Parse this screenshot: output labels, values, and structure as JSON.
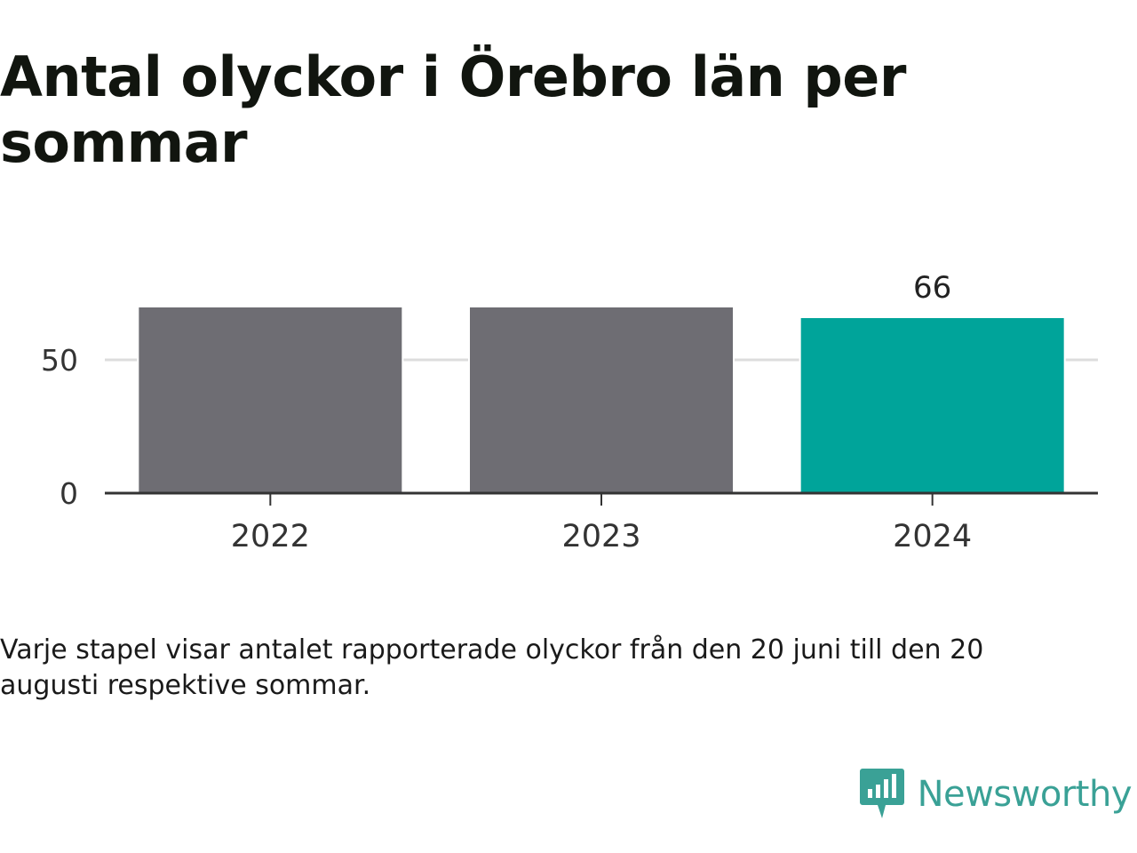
{
  "title": "Antal olyckor i Örebro län per sommar",
  "caption": "Varje stapel visar antalet rapporterade olyckor från den 20 juni till den 20 augusti respektive sommar.",
  "brand": {
    "name": "Newsworthy",
    "icon": "newsworthy-logo-icon",
    "color": "#3aa196"
  },
  "colors": {
    "default_bar": "#6e6d73",
    "highlight_bar": "#00a49a",
    "gridline": "#dddddd",
    "axis": "#333333"
  },
  "chart_data": {
    "type": "bar",
    "categories": [
      "2022",
      "2023",
      "2024"
    ],
    "values": [
      70,
      70,
      66
    ],
    "highlight_index": 2,
    "data_labels": [
      null,
      null,
      "66"
    ],
    "yticks": [
      0,
      50
    ],
    "ylim": [
      0,
      80
    ],
    "grid": true,
    "xlabel": "",
    "ylabel": ""
  }
}
